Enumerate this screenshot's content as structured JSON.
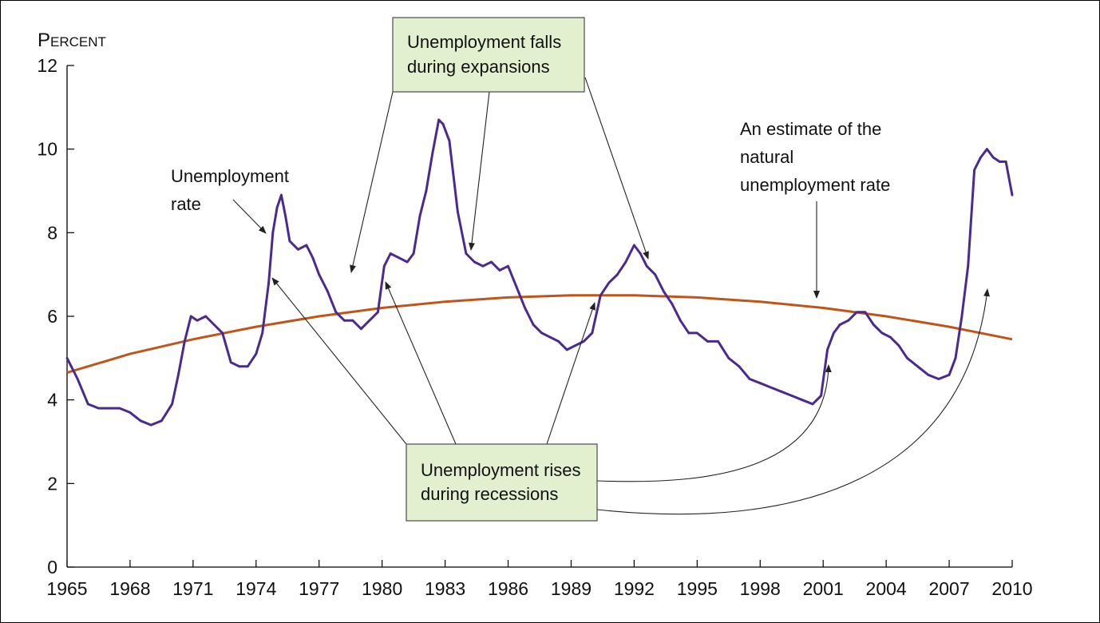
{
  "chart_data": {
    "type": "line",
    "ylabel": "Percent",
    "xlim": [
      1965,
      2010
    ],
    "ylim": [
      0,
      12
    ],
    "x_ticks": [
      "1965",
      "1968",
      "1971",
      "1974",
      "1977",
      "1980",
      "1983",
      "1986",
      "1989",
      "1992",
      "1995",
      "1998",
      "2001",
      "2004",
      "2007",
      "2010"
    ],
    "y_ticks": [
      "0",
      "2",
      "4",
      "6",
      "8",
      "10",
      "12"
    ],
    "grid": false,
    "series": [
      {
        "name": "Unemployment rate",
        "color": "#4b2a8f",
        "x": [
          1965,
          1965.2,
          1965.5,
          1966,
          1966.5,
          1967,
          1967.5,
          1968,
          1968.5,
          1969,
          1969.5,
          1970,
          1970.3,
          1970.6,
          1970.9,
          1971.2,
          1971.6,
          1972,
          1972.4,
          1972.8,
          1973.2,
          1973.6,
          1974,
          1974.3,
          1974.6,
          1974.8,
          1975,
          1975.2,
          1975.4,
          1975.6,
          1976,
          1976.4,
          1976.7,
          1977,
          1977.4,
          1977.8,
          1978.2,
          1978.6,
          1979,
          1979.4,
          1979.8,
          1980.1,
          1980.4,
          1980.8,
          1981.2,
          1981.5,
          1981.8,
          1982.1,
          1982.4,
          1982.7,
          1982.9,
          1983.2,
          1983.6,
          1984,
          1984.4,
          1984.8,
          1985.2,
          1985.6,
          1986,
          1986.4,
          1986.8,
          1987.2,
          1987.6,
          1988,
          1988.4,
          1988.8,
          1989.2,
          1989.6,
          1990,
          1990.4,
          1990.8,
          1991.2,
          1991.6,
          1992,
          1992.3,
          1992.6,
          1993,
          1993.4,
          1993.8,
          1994.2,
          1994.6,
          1995,
          1995.5,
          1996,
          1996.5,
          1997,
          1997.5,
          1998,
          1998.5,
          1999,
          1999.5,
          2000,
          2000.5,
          2000.9,
          2001.2,
          2001.5,
          2001.8,
          2002.2,
          2002.6,
          2003,
          2003.4,
          2003.8,
          2004.2,
          2004.6,
          2005,
          2005.5,
          2006,
          2006.5,
          2007,
          2007.3,
          2007.6,
          2007.9,
          2008.2,
          2008.5,
          2008.8,
          2009.1,
          2009.4,
          2009.7,
          2010
        ],
        "values": [
          5.0,
          4.8,
          4.5,
          3.9,
          3.8,
          3.8,
          3.8,
          3.7,
          3.5,
          3.4,
          3.5,
          3.9,
          4.6,
          5.4,
          6.0,
          5.9,
          6.0,
          5.8,
          5.6,
          4.9,
          4.8,
          4.8,
          5.1,
          5.6,
          6.8,
          8.0,
          8.6,
          8.9,
          8.4,
          7.8,
          7.6,
          7.7,
          7.4,
          7.0,
          6.6,
          6.1,
          5.9,
          5.9,
          5.7,
          5.9,
          6.1,
          7.2,
          7.5,
          7.4,
          7.3,
          7.5,
          8.4,
          9.0,
          9.9,
          10.7,
          10.6,
          10.2,
          8.5,
          7.5,
          7.3,
          7.2,
          7.3,
          7.1,
          7.2,
          6.7,
          6.2,
          5.8,
          5.6,
          5.5,
          5.4,
          5.2,
          5.3,
          5.4,
          5.6,
          6.5,
          6.8,
          7.0,
          7.3,
          7.7,
          7.5,
          7.2,
          7.0,
          6.6,
          6.3,
          5.9,
          5.6,
          5.6,
          5.4,
          5.4,
          5.0,
          4.8,
          4.5,
          4.4,
          4.3,
          4.2,
          4.1,
          4.0,
          3.9,
          4.1,
          5.2,
          5.6,
          5.8,
          5.9,
          6.1,
          6.1,
          5.8,
          5.6,
          5.5,
          5.3,
          5.0,
          4.8,
          4.6,
          4.5,
          4.6,
          5.0,
          6.0,
          7.2,
          9.5,
          9.8,
          10.0,
          9.8,
          9.7,
          9.7,
          8.9
        ]
      },
      {
        "name": "An estimate of the natural unemployment rate",
        "color": "#c0551a",
        "x": [
          1965,
          1968,
          1971,
          1974,
          1977,
          1980,
          1983,
          1986,
          1989,
          1992,
          1995,
          1998,
          2001,
          2004,
          2007,
          2010
        ],
        "values": [
          4.65,
          5.1,
          5.45,
          5.75,
          6.0,
          6.2,
          6.35,
          6.45,
          6.5,
          6.5,
          6.45,
          6.35,
          6.2,
          6.0,
          5.75,
          5.45
        ]
      }
    ],
    "annotations": [
      {
        "id": "unemployment-rate-label",
        "lines": [
          "Unemployment",
          "rate"
        ]
      },
      {
        "id": "natural-rate-label",
        "lines": [
          "An estimate of the",
          "natural",
          "unemployment rate"
        ]
      },
      {
        "id": "expansions-callout",
        "lines": [
          "Unemployment falls",
          "during expansions"
        ]
      },
      {
        "id": "recessions-callout",
        "lines": [
          "Unemployment rises",
          "during recessions"
        ]
      }
    ]
  },
  "colors": {
    "unemployment_line": "#4b2a8f",
    "natural_rate_line": "#c0551a",
    "callout_fill": "#e2f0d0"
  }
}
